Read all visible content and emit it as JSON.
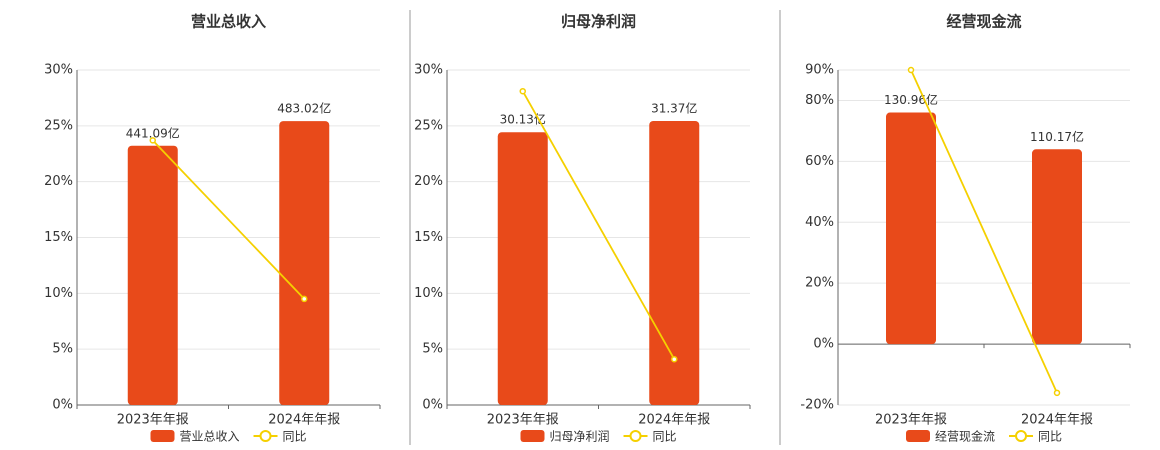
{
  "chart_data": [
    {
      "type": "bar-line",
      "title": "营业总收入",
      "categories": [
        "2023年年报",
        "2024年年报"
      ],
      "series": [
        {
          "name": "营业总收入",
          "color": "#e84a1a",
          "axis": "y2",
          "values": [
            441.09,
            483.02
          ],
          "value_labels": [
            "441.09亿",
            "483.02亿"
          ]
        },
        {
          "name": "同比",
          "color": "#f5d000",
          "values": [
            23.7,
            9.5
          ]
        }
      ],
      "ylim": [
        0,
        30
      ],
      "yticks": [
        {
          "value": 0,
          "label": "0%"
        },
        {
          "value": 5,
          "label": "5%"
        },
        {
          "value": 10,
          "label": "10%"
        },
        {
          "value": 15,
          "label": "15%"
        },
        {
          "value": 20,
          "label": "20%"
        },
        {
          "value": 25,
          "label": "25%"
        },
        {
          "value": 30,
          "label": "30%"
        }
      ],
      "y2lim": [
        0,
        570
      ],
      "grid": true
    },
    {
      "type": "bar-line",
      "title": "归母净利润",
      "categories": [
        "2023年年报",
        "2024年年报"
      ],
      "series": [
        {
          "name": "归母净利润",
          "color": "#e84a1a",
          "axis": "y2",
          "values": [
            30.13,
            31.37
          ],
          "value_labels": [
            "30.13亿",
            "31.37亿"
          ]
        },
        {
          "name": "同比",
          "color": "#f5d000",
          "values": [
            28.1,
            4.1
          ]
        }
      ],
      "ylim": [
        0,
        30
      ],
      "yticks": [
        {
          "value": 0,
          "label": "0%"
        },
        {
          "value": 5,
          "label": "5%"
        },
        {
          "value": 10,
          "label": "10%"
        },
        {
          "value": 15,
          "label": "15%"
        },
        {
          "value": 20,
          "label": "20%"
        },
        {
          "value": 25,
          "label": "25%"
        },
        {
          "value": 30,
          "label": "30%"
        }
      ],
      "y2lim": [
        0,
        37
      ],
      "grid": true
    },
    {
      "type": "bar-line",
      "title": "经营现金流",
      "categories": [
        "2023年年报",
        "2024年年报"
      ],
      "series": [
        {
          "name": "经营现金流",
          "color": "#e84a1a",
          "axis": "y2",
          "values": [
            130.96,
            110.17
          ],
          "value_labels": [
            "130.96亿",
            "110.17亿"
          ]
        },
        {
          "name": "同比",
          "color": "#f5d000",
          "values": [
            90,
            -16
          ]
        }
      ],
      "ylim": [
        -20,
        90
      ],
      "yticks": [
        {
          "value": -20,
          "label": "-20%"
        },
        {
          "value": 0,
          "label": "0%"
        },
        {
          "value": 20,
          "label": "20%"
        },
        {
          "value": 40,
          "label": "40%"
        },
        {
          "value": 60,
          "label": "60%"
        },
        {
          "value": 80,
          "label": "80%"
        },
        {
          "value": 90,
          "label": "90%"
        }
      ],
      "y2lim": [
        -34.4,
        155
      ],
      "grid": true
    }
  ]
}
